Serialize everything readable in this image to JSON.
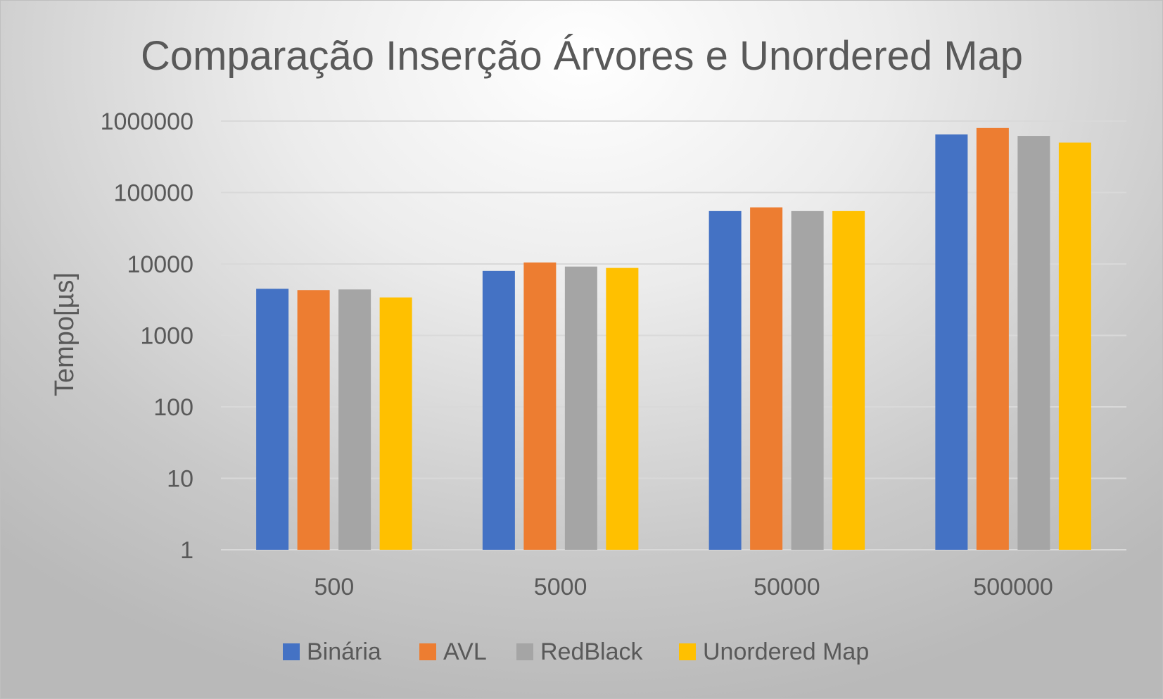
{
  "chart_data": {
    "type": "bar",
    "title": "Comparação Inserção Árvores e Unordered Map",
    "ylabel": "Tempo[µs]",
    "xlabel": "",
    "y_scale": "log",
    "ylim": [
      1,
      1000000
    ],
    "yticks": [
      "1",
      "10",
      "100",
      "1000",
      "10000",
      "100000",
      "1000000"
    ],
    "categories": [
      "500",
      "5000",
      "50000",
      "500000"
    ],
    "series": [
      {
        "name": "Binária",
        "color": "#4472C4",
        "values": [
          4500,
          8000,
          55000,
          650000
        ]
      },
      {
        "name": "AVL",
        "color": "#ED7D31",
        "values": [
          4300,
          10500,
          62000,
          800000
        ]
      },
      {
        "name": "RedBlack",
        "color": "#A5A5A5",
        "values": [
          4400,
          9200,
          55000,
          620000
        ]
      },
      {
        "name": "Unordered Map",
        "color": "#FFC000",
        "values": [
          3400,
          8800,
          55000,
          500000
        ]
      }
    ],
    "grid": true,
    "legend_position": "bottom"
  }
}
